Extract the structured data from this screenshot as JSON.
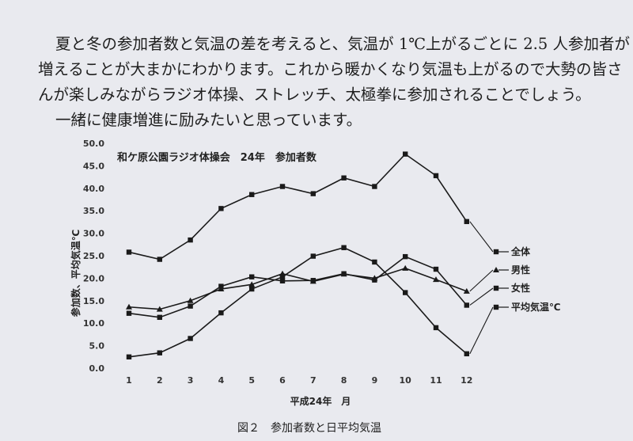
{
  "paragraph": {
    "line1": "夏と冬の参加者数と気温の差を考えると、気温が 1℃上がるごとに 2.5 人参加者が",
    "line2": "増えることが大まかにわかります。これから暖かくなり気温も上がるので大勢の皆さ",
    "line3": "んが楽しみながらラジオ体操、ストレッチ、太極拳に参加されることでしょう。",
    "line4": "一緒に健康増進に励みたいと思っています。"
  },
  "caption": "図２　参加者数と日平均気温",
  "chart_data": {
    "type": "line",
    "title": "和ケ原公園ラジオ体操会　24年　参加者数",
    "xlabel": "平成24年　月",
    "ylabel": "参加数、平均気温℃",
    "x": [
      "1",
      "2",
      "3",
      "4",
      "5",
      "6",
      "7",
      "8",
      "9",
      "10",
      "11",
      "12"
    ],
    "y_ticks": [
      "0.0",
      "5.0",
      "10.0",
      "15.0",
      "20.0",
      "25.0",
      "30.0",
      "35.0",
      "40.0",
      "45.0",
      "50.0"
    ],
    "ylim": [
      0,
      50
    ],
    "grid": false,
    "legend": "right, labels connected to series ends",
    "series": [
      {
        "name": "全体",
        "marker": "square",
        "values": [
          25.8,
          24.2,
          28.5,
          35.5,
          38.6,
          40.4,
          38.8,
          42.3,
          40.4,
          47.6,
          42.8,
          32.6
        ]
      },
      {
        "name": "男性",
        "marker": "triangle",
        "values": [
          13.6,
          13.1,
          15.0,
          17.6,
          18.6,
          21.0,
          19.3,
          20.9,
          20.0,
          22.2,
          19.7,
          17.1
        ]
      },
      {
        "name": "女性",
        "marker": "square",
        "values": [
          12.2,
          11.3,
          13.8,
          18.2,
          20.3,
          19.4,
          19.5,
          21.0,
          19.6,
          24.8,
          22.0,
          14.0
        ]
      },
      {
        "name": "平均気温℃",
        "marker": "square",
        "values": [
          2.5,
          3.4,
          6.6,
          12.3,
          17.6,
          20.3,
          24.9,
          26.8,
          23.6,
          16.8,
          9.0,
          3.2
        ]
      }
    ]
  }
}
